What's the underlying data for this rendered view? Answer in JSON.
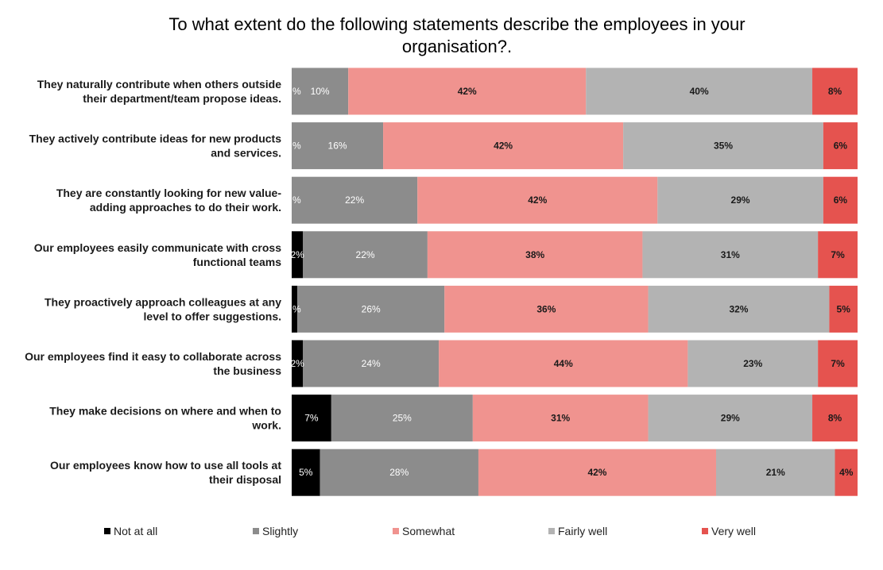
{
  "chart_data": {
    "type": "bar",
    "orientation": "horizontal",
    "stacked": true,
    "normalized": true,
    "title_lines": [
      "To what extent do the following  statements describe the employees in your",
      "organisation?."
    ],
    "xlabel": "",
    "ylabel": "",
    "xlim": [
      0,
      100
    ],
    "grid": false,
    "legend_position": "bottom",
    "categories": [
      [
        "They naturally contribute when others outside",
        "their department/team propose ideas."
      ],
      [
        "They actively contribute ideas for new products",
        "and services."
      ],
      [
        "They are constantly looking for new value-",
        "adding approaches to do their work."
      ],
      [
        "Our employees easily communicate with cross",
        "functional teams"
      ],
      [
        "They proactively approach colleagues at any",
        "level to offer suggestions."
      ],
      [
        "Our employees find it easy to collaborate across",
        "the business"
      ],
      [
        "They make decisions on where and when to",
        "work."
      ],
      [
        "Our employees know how to use all tools at",
        "their disposal"
      ]
    ],
    "series": [
      {
        "name": "Not at all",
        "color": "#000000",
        "label_color": "#ffffff",
        "values": [
          0,
          0,
          0,
          2,
          1,
          2,
          7,
          5
        ],
        "labels": [
          "%",
          "%",
          "%",
          "2%",
          "%",
          "2%",
          "7%",
          "5%"
        ]
      },
      {
        "name": "Slightly",
        "color": "#8c8c8c",
        "label_color": "#ffffff",
        "values": [
          10,
          16,
          22,
          22,
          26,
          24,
          25,
          28
        ],
        "labels": [
          "10%",
          "16%",
          "22%",
          "22%",
          "26%",
          "24%",
          "25%",
          "28%"
        ]
      },
      {
        "name": "Somewhat",
        "color": "#f0938f",
        "label_color": "#1a1a1a",
        "values": [
          42,
          42,
          42,
          38,
          36,
          44,
          31,
          42
        ],
        "labels": [
          "42%",
          "42%",
          "42%",
          "38%",
          "36%",
          "44%",
          "31%",
          "42%"
        ]
      },
      {
        "name": "Fairly well",
        "color": "#b3b3b3",
        "label_color": "#1a1a1a",
        "values": [
          40,
          35,
          29,
          31,
          32,
          23,
          29,
          21
        ],
        "labels": [
          "40%",
          "35%",
          "29%",
          "31%",
          "32%",
          "23%",
          "29%",
          "21%"
        ]
      },
      {
        "name": "Very well",
        "color": "#e5534f",
        "label_color": "#1a1a1a",
        "values": [
          8,
          6,
          6,
          7,
          5,
          7,
          8,
          4
        ],
        "labels": [
          "8%",
          "6%",
          "6%",
          "7%",
          "5%",
          "7%",
          "8%",
          "4%"
        ]
      }
    ]
  }
}
